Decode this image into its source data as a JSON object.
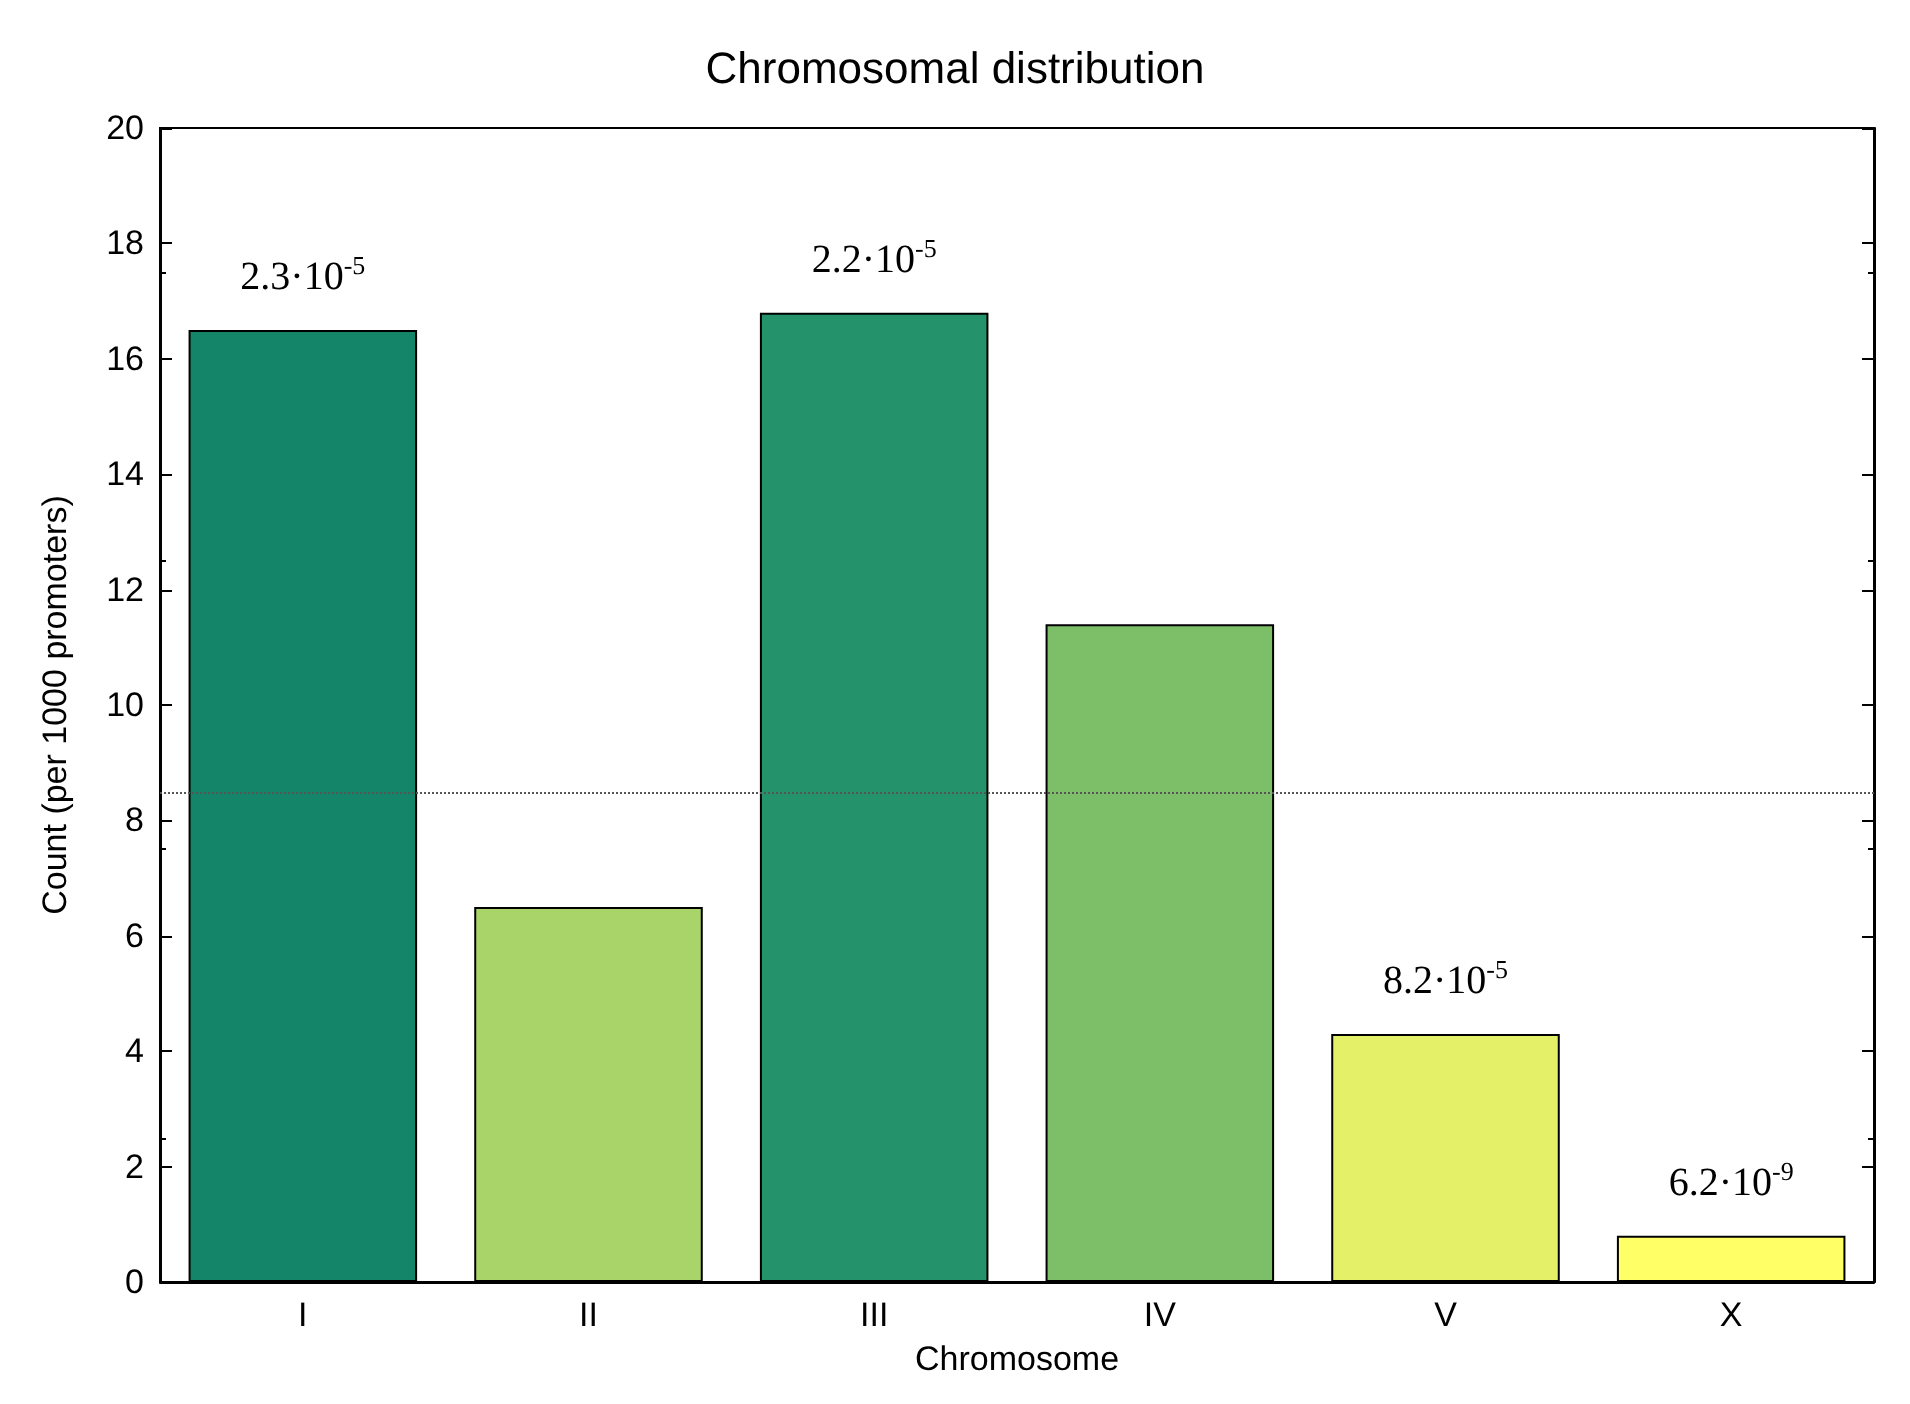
{
  "chart_data": {
    "type": "bar",
    "title": "Chromosomal distribution",
    "xlabel": "Chromosome",
    "ylabel": "Count (per 1000 promoters)",
    "categories": [
      "I",
      "II",
      "III",
      "IV",
      "V",
      "X"
    ],
    "values": [
      16.5,
      6.5,
      16.8,
      11.4,
      4.3,
      0.8
    ],
    "colors": [
      "#15856a",
      "#a8d46a",
      "#24926a",
      "#7dbf69",
      "#e5f069",
      "#ffff66"
    ],
    "ylim": [
      0,
      20
    ],
    "yticks": [
      0,
      2,
      4,
      6,
      8,
      10,
      12,
      14,
      16,
      18,
      20
    ],
    "grid": false,
    "ref_lines": [
      {
        "axis": "y",
        "value": 8.5,
        "color": "#555555",
        "line_style": "dotted"
      }
    ],
    "annotations": [
      {
        "text": "2.3·10$^{-5}$",
        "x": "I",
        "y": 16.5
      },
      {
        "text": "2.2·10$^{-5}$",
        "x": "III",
        "y": 16.8
      },
      {
        "text": "8.2·10$^{-5}$",
        "x": "V",
        "y": 4.3
      },
      {
        "text": "6.2·10$^{-9}$",
        "x": "X",
        "y": 0.8
      }
    ]
  }
}
